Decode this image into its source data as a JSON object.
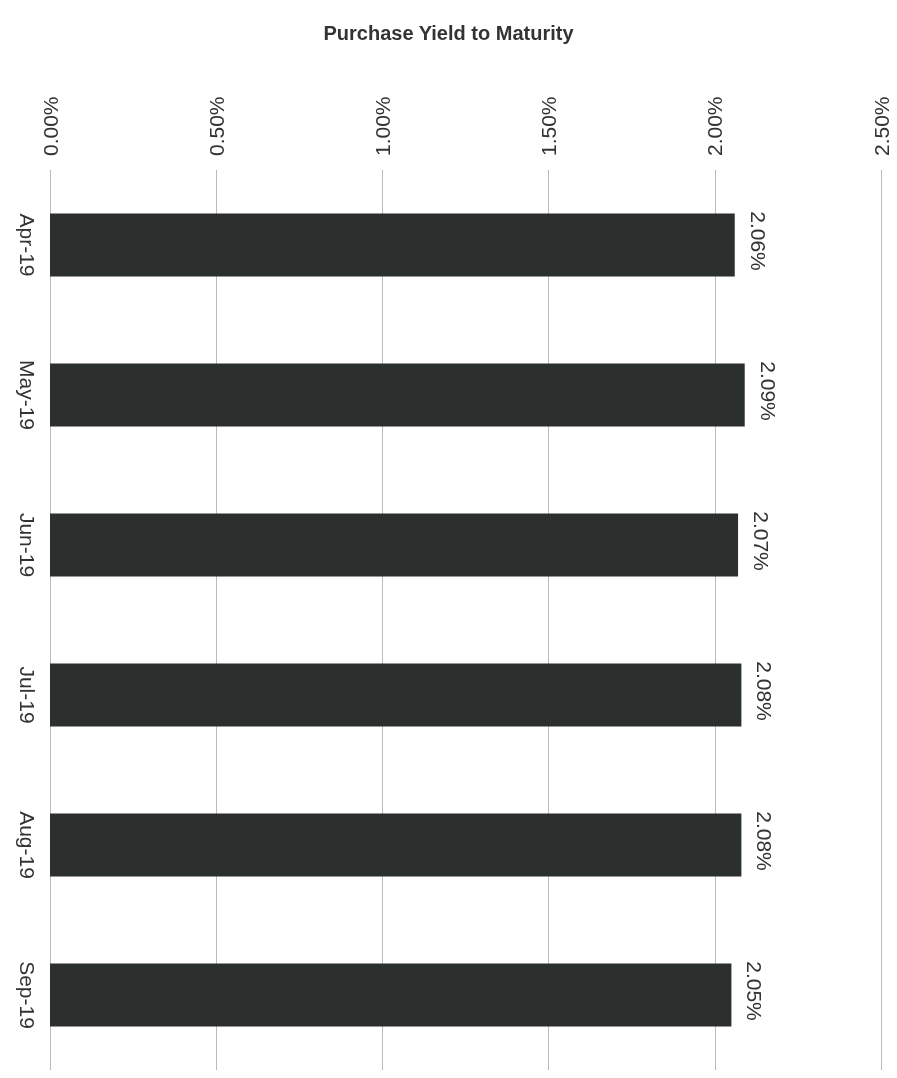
{
  "chart_data": {
    "type": "bar",
    "orientation": "horizontal",
    "title": "Purchase Yield to Maturity",
    "categories": [
      "Apr-19",
      "May-19",
      "Jun-19",
      "Jul-19",
      "Aug-19",
      "Sep-19"
    ],
    "values": [
      2.06,
      2.09,
      2.07,
      2.08,
      2.08,
      2.05
    ],
    "value_labels": [
      "2.06%",
      "2.09%",
      "2.07%",
      "2.08%",
      "2.08%",
      "2.05%"
    ],
    "color": "#2b2f2d",
    "xlim": [
      0,
      2.5
    ],
    "xticks": [
      {
        "value": 0,
        "label": "0.00%"
      },
      {
        "value": 0.5,
        "label": "0.50%"
      },
      {
        "value": 1,
        "label": "1.00%"
      },
      {
        "value": 1.5,
        "label": "1.50%"
      },
      {
        "value": 2,
        "label": "2.00%"
      },
      {
        "value": 2.5,
        "label": "2.50%"
      }
    ],
    "grid": "x"
  }
}
